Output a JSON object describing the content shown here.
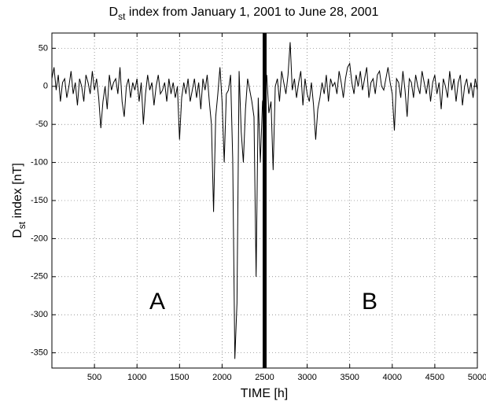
{
  "chart_data": {
    "type": "line",
    "title": {
      "base": "D",
      "sub": "st",
      "rest": " index from January 1, 2001 to June 28, 2001"
    },
    "y_label": {
      "base": "D",
      "sub": "st",
      "rest": " index [nT]"
    },
    "x_label": "TIME [h]",
    "annotations": [
      "A",
      "B"
    ],
    "divider_x": 2500,
    "color": "#000000",
    "grid": true,
    "xlim": [
      0,
      5000
    ],
    "xticks": [
      500,
      1000,
      1500,
      2000,
      2500,
      3000,
      3500,
      4000,
      4500,
      5000
    ],
    "ylim": [
      -370,
      70
    ],
    "yticks": [
      -350,
      -300,
      -250,
      -200,
      -150,
      -100,
      -50,
      0,
      50
    ],
    "x": [
      0,
      25,
      50,
      75,
      100,
      125,
      150,
      175,
      200,
      225,
      250,
      275,
      300,
      325,
      350,
      375,
      400,
      425,
      450,
      475,
      500,
      525,
      550,
      575,
      600,
      625,
      650,
      675,
      700,
      725,
      750,
      775,
      800,
      825,
      850,
      875,
      900,
      925,
      950,
      975,
      1000,
      1025,
      1050,
      1075,
      1100,
      1125,
      1150,
      1175,
      1200,
      1225,
      1250,
      1275,
      1300,
      1325,
      1350,
      1375,
      1400,
      1425,
      1450,
      1475,
      1500,
      1525,
      1550,
      1575,
      1600,
      1625,
      1650,
      1675,
      1700,
      1725,
      1750,
      1775,
      1800,
      1825,
      1850,
      1875,
      1900,
      1925,
      1950,
      1975,
      2000,
      2025,
      2050,
      2075,
      2100,
      2125,
      2150,
      2175,
      2200,
      2225,
      2250,
      2275,
      2300,
      2325,
      2350,
      2375,
      2400,
      2425,
      2450,
      2475,
      2500,
      2525,
      2550,
      2575,
      2600,
      2625,
      2650,
      2675,
      2700,
      2725,
      2750,
      2775,
      2800,
      2825,
      2850,
      2875,
      2900,
      2925,
      2950,
      2975,
      3000,
      3025,
      3050,
      3075,
      3100,
      3125,
      3150,
      3175,
      3200,
      3225,
      3250,
      3275,
      3300,
      3325,
      3350,
      3375,
      3400,
      3425,
      3450,
      3475,
      3500,
      3525,
      3550,
      3575,
      3600,
      3625,
      3650,
      3675,
      3700,
      3725,
      3750,
      3775,
      3800,
      3825,
      3850,
      3875,
      3900,
      3925,
      3950,
      3975,
      4000,
      4025,
      4050,
      4075,
      4100,
      4125,
      4150,
      4175,
      4200,
      4225,
      4250,
      4275,
      4300,
      4325,
      4350,
      4375,
      4400,
      4425,
      4450,
      4475,
      4500,
      4525,
      4550,
      4575,
      4600,
      4625,
      4650,
      4675,
      4700,
      4725,
      4750,
      4775,
      4800,
      4825,
      4850,
      4875,
      4900,
      4925,
      4950,
      4975,
      5000
    ],
    "values": [
      10,
      25,
      -5,
      15,
      -20,
      5,
      10,
      -15,
      0,
      20,
      -10,
      5,
      -25,
      10,
      0,
      -20,
      15,
      5,
      -10,
      20,
      -5,
      10,
      -15,
      -55,
      -20,
      0,
      -30,
      15,
      -5,
      5,
      10,
      -10,
      25,
      -20,
      -40,
      0,
      10,
      -15,
      5,
      -5,
      10,
      -20,
      5,
      -50,
      -10,
      15,
      -5,
      5,
      -25,
      0,
      15,
      -10,
      -5,
      5,
      -20,
      10,
      -10,
      5,
      -15,
      0,
      -70,
      -15,
      5,
      -10,
      10,
      -20,
      -5,
      10,
      -15,
      5,
      -30,
      10,
      -5,
      15,
      -20,
      -50,
      -165,
      -40,
      -10,
      25,
      -20,
      -100,
      -10,
      -5,
      15,
      -95,
      -358,
      -285,
      20,
      -60,
      -100,
      -30,
      10,
      -5,
      -20,
      -40,
      -250,
      -15,
      -100,
      -20,
      -10,
      15,
      -35,
      -20,
      -110,
      0,
      10,
      -20,
      20,
      5,
      -10,
      15,
      58,
      -5,
      10,
      -15,
      5,
      20,
      -25,
      10,
      -10,
      -20,
      5,
      -25,
      -70,
      -30,
      -15,
      5,
      -10,
      15,
      -20,
      10,
      0,
      5,
      -10,
      20,
      5,
      -15,
      10,
      25,
      30,
      5,
      -10,
      15,
      0,
      20,
      -5,
      10,
      25,
      -15,
      5,
      10,
      -10,
      15,
      20,
      0,
      -5,
      10,
      25,
      5,
      -10,
      -58,
      10,
      5,
      -15,
      20,
      -5,
      -40,
      10,
      5,
      -15,
      15,
      0,
      -10,
      20,
      5,
      -10,
      10,
      -20,
      5,
      15,
      -10,
      5,
      -30,
      10,
      0,
      -15,
      20,
      -5,
      10,
      -20,
      5,
      15,
      -25,
      0,
      10,
      -10,
      5,
      -15,
      10,
      -5
    ]
  }
}
